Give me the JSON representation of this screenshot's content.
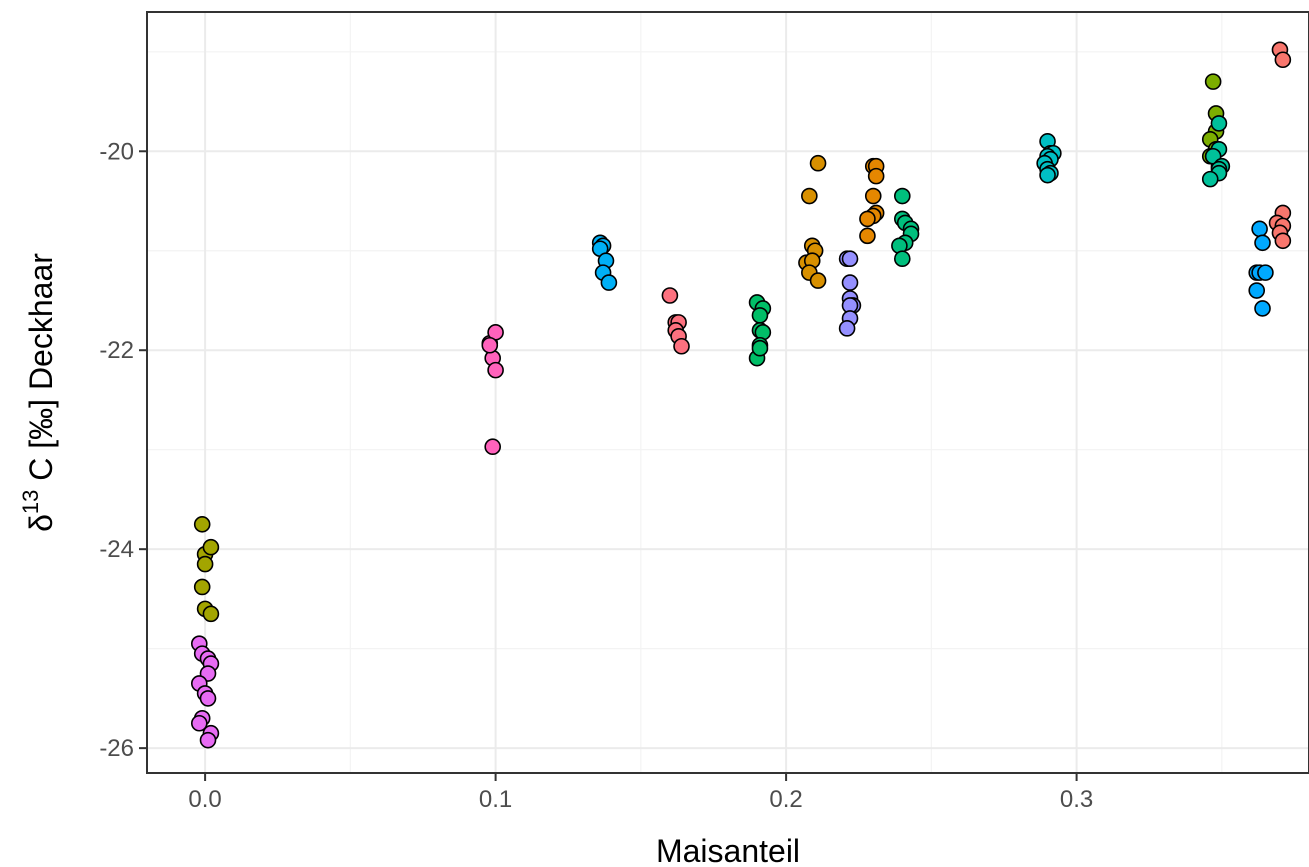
{
  "chart_data": {
    "type": "scatter",
    "title": "",
    "xlabel": "Maisanteil",
    "ylabel": {
      "prefix": "δ",
      "superscript": "13",
      "suffix": " C [‰] Deckhaar"
    },
    "xlim": [
      -0.02,
      0.38
    ],
    "ylim": [
      -26.25,
      -18.6
    ],
    "x_ticks": [
      0.0,
      0.1,
      0.2,
      0.3
    ],
    "x_tick_labels": [
      "0.0",
      "0.1",
      "0.2",
      "0.3"
    ],
    "y_ticks": [
      -26,
      -24,
      -22,
      -20
    ],
    "y_tick_labels": [
      "-26",
      "-24",
      "-22",
      "-20"
    ],
    "grid": true,
    "legend": "none",
    "series": [
      {
        "color": "#a3a500",
        "points": [
          [
            -0.001,
            -23.75
          ],
          [
            0.0,
            -24.05
          ],
          [
            0.002,
            -23.98
          ],
          [
            0.0,
            -24.15
          ],
          [
            -0.001,
            -24.38
          ],
          [
            0.0,
            -24.6
          ],
          [
            0.002,
            -24.65
          ]
        ]
      },
      {
        "color": "#e76bf3",
        "points": [
          [
            -0.002,
            -24.95
          ],
          [
            -0.001,
            -25.05
          ],
          [
            0.001,
            -25.1
          ],
          [
            0.002,
            -25.15
          ],
          [
            0.001,
            -25.25
          ],
          [
            -0.002,
            -25.35
          ],
          [
            0.0,
            -25.45
          ],
          [
            0.001,
            -25.5
          ],
          [
            -0.001,
            -25.7
          ],
          [
            -0.002,
            -25.75
          ],
          [
            0.002,
            -25.85
          ],
          [
            0.001,
            -25.92
          ]
        ]
      },
      {
        "color": "#ff62bc",
        "points": [
          [
            0.098,
            -21.93
          ],
          [
            0.1,
            -21.82
          ],
          [
            0.099,
            -22.08
          ],
          [
            0.1,
            -22.2
          ],
          [
            0.098,
            -21.95
          ],
          [
            0.099,
            -22.97
          ]
        ]
      },
      {
        "color": "#00b0f6",
        "points": [
          [
            0.136,
            -20.92
          ],
          [
            0.137,
            -20.95
          ],
          [
            0.136,
            -20.98
          ],
          [
            0.138,
            -21.1
          ],
          [
            0.137,
            -21.22
          ],
          [
            0.139,
            -21.32
          ]
        ]
      },
      {
        "color": "#fc717f",
        "points": [
          [
            0.16,
            -21.45
          ],
          [
            0.162,
            -21.72
          ],
          [
            0.163,
            -21.72
          ],
          [
            0.162,
            -21.8
          ],
          [
            0.163,
            -21.86
          ],
          [
            0.164,
            -21.96
          ]
        ]
      },
      {
        "color": "#00be67",
        "points": [
          [
            0.19,
            -21.52
          ],
          [
            0.192,
            -21.58
          ],
          [
            0.191,
            -21.65
          ],
          [
            0.191,
            -21.8
          ],
          [
            0.192,
            -21.82
          ],
          [
            0.191,
            -21.95
          ],
          [
            0.19,
            -22.08
          ],
          [
            0.191,
            -21.98
          ]
        ]
      },
      {
        "color": "#d89000",
        "points": [
          [
            0.211,
            -20.12
          ],
          [
            0.208,
            -20.45
          ],
          [
            0.209,
            -20.95
          ],
          [
            0.21,
            -21.0
          ],
          [
            0.207,
            -21.12
          ],
          [
            0.209,
            -21.1
          ],
          [
            0.208,
            -21.22
          ],
          [
            0.211,
            -21.3
          ]
        ]
      },
      {
        "color": "#9590ff",
        "points": [
          [
            0.221,
            -21.08
          ],
          [
            0.222,
            -21.08
          ],
          [
            0.222,
            -21.32
          ],
          [
            0.222,
            -21.48
          ],
          [
            0.223,
            -21.55
          ],
          [
            0.222,
            -21.55
          ],
          [
            0.222,
            -21.68
          ],
          [
            0.221,
            -21.78
          ]
        ]
      },
      {
        "color": "#e58700",
        "points": [
          [
            0.23,
            -20.15
          ],
          [
            0.231,
            -20.15
          ],
          [
            0.231,
            -20.25
          ],
          [
            0.23,
            -20.45
          ],
          [
            0.231,
            -20.62
          ],
          [
            0.23,
            -20.65
          ],
          [
            0.228,
            -20.68
          ],
          [
            0.228,
            -20.85
          ]
        ]
      },
      {
        "color": "#00bf7d",
        "points": [
          [
            0.24,
            -20.45
          ],
          [
            0.24,
            -20.68
          ],
          [
            0.241,
            -20.72
          ],
          [
            0.243,
            -20.78
          ],
          [
            0.243,
            -20.83
          ],
          [
            0.241,
            -20.92
          ],
          [
            0.239,
            -20.95
          ],
          [
            0.24,
            -21.08
          ]
        ]
      },
      {
        "color": "#00bfc4",
        "points": [
          [
            0.29,
            -19.9
          ],
          [
            0.291,
            -20.02
          ],
          [
            0.292,
            -20.02
          ],
          [
            0.29,
            -20.05
          ],
          [
            0.291,
            -20.08
          ],
          [
            0.289,
            -20.12
          ],
          [
            0.29,
            -20.18
          ],
          [
            0.291,
            -20.22
          ],
          [
            0.29,
            -20.24
          ]
        ]
      },
      {
        "color": "#7cae00",
        "points": [
          [
            0.347,
            -19.3
          ],
          [
            0.348,
            -19.62
          ],
          [
            0.348,
            -19.8
          ],
          [
            0.346,
            -19.88
          ],
          [
            0.348,
            -19.98
          ],
          [
            0.346,
            -20.05
          ],
          [
            0.347,
            -20.05
          ],
          [
            0.349,
            -20.15
          ]
        ]
      },
      {
        "color": "#00c19a",
        "points": [
          [
            0.349,
            -19.72
          ],
          [
            0.349,
            -19.98
          ],
          [
            0.347,
            -20.05
          ],
          [
            0.35,
            -20.15
          ],
          [
            0.349,
            -20.18
          ],
          [
            0.349,
            -20.22
          ],
          [
            0.346,
            -20.28
          ]
        ]
      },
      {
        "color": "#00a9ff",
        "points": [
          [
            0.363,
            -20.78
          ],
          [
            0.364,
            -20.92
          ],
          [
            0.362,
            -21.22
          ],
          [
            0.363,
            -21.22
          ],
          [
            0.365,
            -21.22
          ],
          [
            0.362,
            -21.4
          ],
          [
            0.364,
            -21.58
          ]
        ]
      },
      {
        "color": "#f8766d",
        "points": [
          [
            0.37,
            -18.98
          ],
          [
            0.371,
            -19.08
          ],
          [
            0.371,
            -20.62
          ],
          [
            0.369,
            -20.72
          ],
          [
            0.371,
            -20.75
          ],
          [
            0.37,
            -20.82
          ],
          [
            0.371,
            -20.9
          ]
        ]
      }
    ]
  }
}
